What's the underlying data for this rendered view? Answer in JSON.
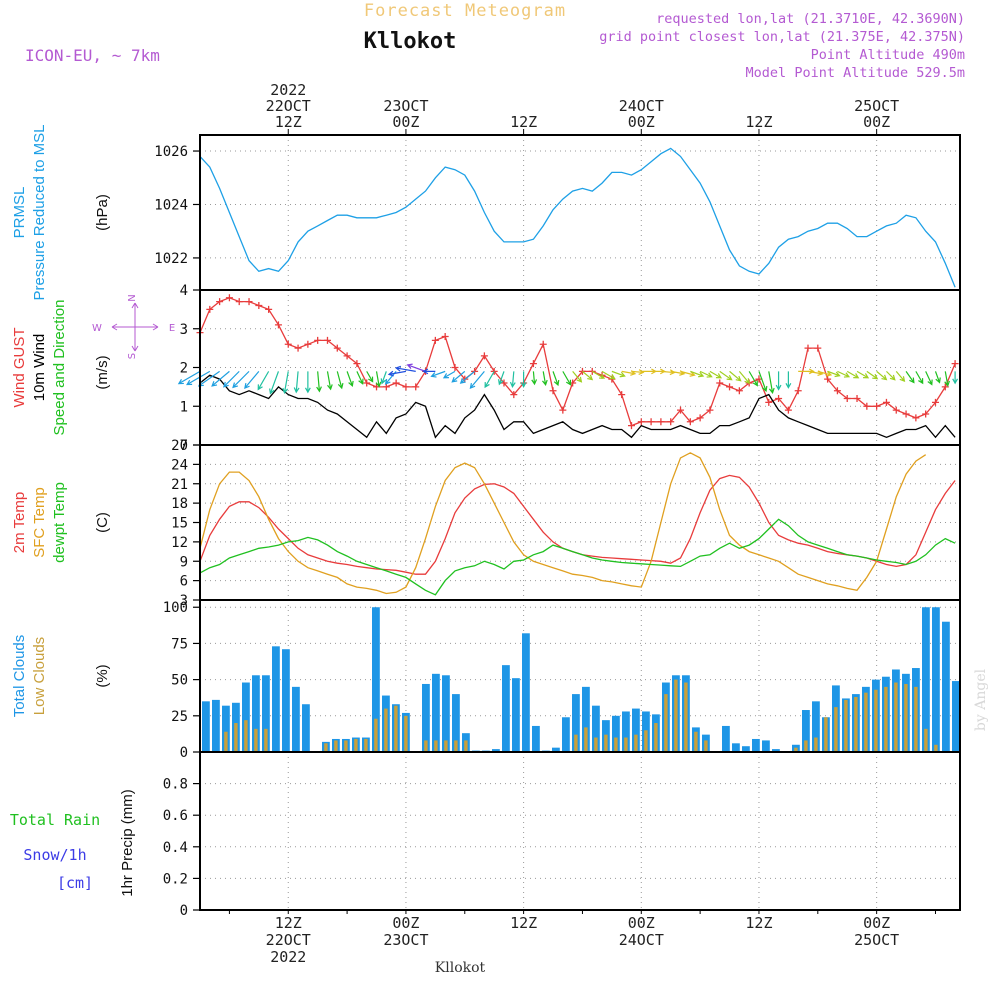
{
  "header": {
    "title": "Forecast Meteogram",
    "location": "Kllokot",
    "model": "ICON-EU, ~ 7km",
    "requested": "requested lon,lat (21.3710E, 42.3690N)",
    "gridpoint": "grid point closest lon,lat (21.375E, 42.375N)",
    "point_alt": "Point Altitude 490m",
    "model_alt": "Model Point Altitude 529.5m",
    "footer": "Kllokot",
    "watermark": "by Angel"
  },
  "colors": {
    "pressure": "#1ea0e6",
    "gust": "#e83c3c",
    "wind10m": "#000000",
    "t2m": "#e83c3c",
    "sfc": "#e0a020",
    "dewpt": "#20c020",
    "total_clouds": "#1e96e6",
    "low_clouds": "#c8a03c",
    "rain": "#20c020",
    "snow": "#3c3ce6",
    "header": "#b45ad2",
    "title": "#f0c878"
  },
  "time_axis": {
    "top": [
      {
        "h": 12,
        "lines": [
          "2022",
          "22OCT",
          "12Z"
        ]
      },
      {
        "h": 24,
        "lines": [
          "23OCT",
          "00Z"
        ]
      },
      {
        "h": 36,
        "lines": [
          "12Z"
        ]
      },
      {
        "h": 48,
        "lines": [
          "24OCT",
          "00Z"
        ]
      },
      {
        "h": 60,
        "lines": [
          "12Z"
        ]
      },
      {
        "h": 72,
        "lines": [
          "25OCT",
          "00Z"
        ]
      }
    ],
    "bottom": [
      {
        "h": 12,
        "lines": [
          "12Z",
          "22OCT",
          "2022"
        ]
      },
      {
        "h": 24,
        "lines": [
          "00Z",
          "23OCT"
        ]
      },
      {
        "h": 36,
        "lines": [
          "12Z"
        ]
      },
      {
        "h": 48,
        "lines": [
          "00Z",
          "24OCT"
        ]
      },
      {
        "h": 60,
        "lines": [
          "12Z"
        ]
      },
      {
        "h": 72,
        "lines": [
          "00Z",
          "25OCT"
        ]
      }
    ]
  },
  "chart_data": [
    {
      "type": "line",
      "label_lines": [
        {
          "text": "PRMSL",
          "color": "#1ea0e6"
        },
        {
          "text": "Pressure Reduced to MSL",
          "color": "#1ea0e6"
        }
      ],
      "unit": "(hPa)",
      "ylim": [
        1020.8,
        1026.6
      ],
      "yticks": [
        1022,
        1024,
        1026
      ],
      "series": [
        {
          "key": "pressure",
          "values": [
            1025.8,
            1025.4,
            1024.6,
            1023.7,
            1022.8,
            1021.9,
            1021.5,
            1021.6,
            1021.5,
            1021.9,
            1022.6,
            1023.0,
            1023.2,
            1023.4,
            1023.6,
            1023.6,
            1023.5,
            1023.5,
            1023.5,
            1023.6,
            1023.7,
            1023.9,
            1024.2,
            1024.5,
            1025.0,
            1025.4,
            1025.3,
            1025.1,
            1024.5,
            1023.7,
            1023.0,
            1022.6,
            1022.6,
            1022.6,
            1022.7,
            1023.2,
            1023.8,
            1024.2,
            1024.5,
            1024.6,
            1024.5,
            1024.8,
            1025.2,
            1025.2,
            1025.1,
            1025.3,
            1025.6,
            1025.9,
            1026.1,
            1025.8,
            1025.3,
            1024.8,
            1024.1,
            1023.2,
            1022.3,
            1021.7,
            1021.5,
            1021.4,
            1021.8,
            1022.4,
            1022.7,
            1022.8,
            1023.0,
            1023.1,
            1023.3,
            1023.3,
            1023.1,
            1022.8,
            1022.8,
            1023.0,
            1023.2,
            1023.3,
            1023.6,
            1023.5,
            1023.0,
            1022.6,
            1021.8,
            1020.9
          ]
        }
      ]
    },
    {
      "type": "line",
      "label_lines": [
        {
          "text": "Wind GUST",
          "color": "#e83c3c"
        },
        {
          "text": "10m Wind",
          "color": "#000000"
        },
        {
          "text": "Speed and Direction",
          "color": "#20c020"
        }
      ],
      "unit": "(m/s)",
      "ylim": [
        0,
        4
      ],
      "yticks": [
        0,
        1,
        2,
        3,
        4
      ],
      "compass": {
        "n": "N",
        "s": "S",
        "w": "W",
        "e": "E"
      },
      "series": [
        {
          "key": "gust",
          "values": [
            2.9,
            3.5,
            3.7,
            3.8,
            3.7,
            3.7,
            3.6,
            3.5,
            3.1,
            2.6,
            2.5,
            2.6,
            2.7,
            2.7,
            2.5,
            2.3,
            2.1,
            1.6,
            1.5,
            1.5,
            1.6,
            1.5,
            1.5,
            1.9,
            2.7,
            2.8,
            2.0,
            1.7,
            1.9,
            2.3,
            1.9,
            1.6,
            1.3,
            1.6,
            2.1,
            2.6,
            1.4,
            0.9,
            1.6,
            1.9,
            1.9,
            1.8,
            1.7,
            1.3,
            0.5,
            0.6,
            0.6,
            0.6,
            0.6,
            0.9,
            0.6,
            0.7,
            0.9,
            1.6,
            1.5,
            1.4,
            1.6,
            1.7,
            1.1,
            1.2,
            0.9,
            1.4,
            2.5,
            2.5,
            1.7,
            1.4,
            1.2,
            1.2,
            1.0,
            1.0,
            1.1,
            0.9,
            0.8,
            0.7,
            0.8,
            1.1,
            1.5,
            2.1
          ]
        },
        {
          "key": "wind10m",
          "values": [
            1.6,
            1.8,
            1.7,
            1.4,
            1.3,
            1.4,
            1.3,
            1.2,
            1.5,
            1.3,
            1.2,
            1.2,
            1.1,
            0.9,
            0.8,
            0.6,
            0.4,
            0.2,
            0.6,
            0.3,
            0.7,
            0.8,
            1.1,
            1.0,
            0.2,
            0.5,
            0.3,
            0.7,
            0.9,
            1.3,
            0.9,
            0.4,
            0.6,
            0.6,
            0.3,
            0.4,
            0.5,
            0.6,
            0.4,
            0.3,
            0.4,
            0.5,
            0.4,
            0.4,
            0.2,
            0.5,
            0.4,
            0.4,
            0.4,
            0.5,
            0.4,
            0.3,
            0.3,
            0.5,
            0.5,
            0.6,
            0.7,
            1.2,
            1.3,
            0.9,
            0.7,
            0.6,
            0.5,
            0.4,
            0.3,
            0.3,
            0.3,
            0.3,
            0.3,
            0.3,
            0.2,
            0.3,
            0.4,
            0.4,
            0.5,
            0.2,
            0.5,
            0.2
          ]
        }
      ],
      "wind_arrows": {
        "direction_deg": [
          240,
          240,
          235,
          230,
          225,
          225,
          220,
          210,
          200,
          190,
          185,
          180,
          175,
          170,
          165,
          160,
          155,
          150,
          170,
          200,
          220,
          260,
          280,
          290,
          270,
          250,
          240,
          230,
          230,
          220,
          210,
          200,
          185,
          180,
          175,
          170,
          160,
          150,
          140,
          130,
          120,
          120,
          110,
          100,
          95,
          90,
          90,
          95,
          100,
          105,
          110,
          115,
          120,
          125,
          130,
          140,
          150,
          160,
          170,
          180,
          180,
          90,
          100,
          105,
          110,
          115,
          120,
          120,
          125,
          130,
          135,
          140,
          145,
          150,
          155,
          160,
          170,
          180
        ],
        "level": 1.9
      }
    },
    {
      "type": "line",
      "label_lines": [
        {
          "text": "2m Temp",
          "color": "#e83c3c"
        },
        {
          "text": "SFC Temp",
          "color": "#e0a020"
        },
        {
          "text": "dewpt Temp",
          "color": "#20c020"
        }
      ],
      "unit": "(C)",
      "ylim": [
        3,
        27
      ],
      "yticks": [
        3,
        6,
        9,
        12,
        15,
        18,
        21,
        24,
        27
      ],
      "series": [
        {
          "key": "t2m",
          "values": [
            9.0,
            13.0,
            15.5,
            17.5,
            18.2,
            18.2,
            17.3,
            15.8,
            14.0,
            12.5,
            11.0,
            10.0,
            9.5,
            9.0,
            8.7,
            8.5,
            8.2,
            8.0,
            7.8,
            7.7,
            7.6,
            7.3,
            7.0,
            7.0,
            9.0,
            12.5,
            16.5,
            18.8,
            20.2,
            20.9,
            21.0,
            20.5,
            19.5,
            17.5,
            15.5,
            13.5,
            12.0,
            11.0,
            10.5,
            10.0,
            9.8,
            9.6,
            9.5,
            9.4,
            9.3,
            9.2,
            9.1,
            9.0,
            8.7,
            9.5,
            12.5,
            16.5,
            20.0,
            21.8,
            22.3,
            22.0,
            20.5,
            18.0,
            15.0,
            13.0,
            12.3,
            11.8,
            11.5,
            11.0,
            10.5,
            10.2,
            10.0,
            9.8,
            9.5,
            9.0,
            8.5,
            8.2,
            8.5,
            10.0,
            13.5,
            17.0,
            19.5,
            21.5
          ]
        },
        {
          "key": "sfc",
          "values": [
            11.0,
            17.0,
            21.0,
            22.8,
            22.8,
            21.5,
            19.0,
            15.5,
            12.5,
            10.5,
            9.0,
            8.0,
            7.5,
            7.0,
            6.5,
            5.5,
            5.0,
            4.8,
            4.5,
            4.0,
            4.2,
            5.0,
            8.0,
            12.5,
            17.5,
            21.5,
            23.5,
            24.2,
            23.5,
            21.0,
            18.0,
            15.0,
            12.0,
            10.0,
            9.0,
            8.5,
            8.0,
            7.5,
            7.0,
            6.8,
            6.5,
            6.0,
            5.8,
            5.5,
            5.2,
            5.0,
            9.0,
            15.0,
            21.0,
            25.0,
            25.8,
            25.0,
            22.0,
            17.0,
            13.0,
            11.5,
            10.5,
            10.0,
            9.5,
            9.0,
            8.0,
            7.0,
            6.5,
            6.0,
            5.5,
            5.2,
            4.8,
            4.5,
            6.5,
            9.0,
            14.0,
            19.0,
            22.5,
            24.5,
            25.5
          ]
        },
        {
          "key": "dewpt",
          "values": [
            7.2,
            8.0,
            8.5,
            9.5,
            10.0,
            10.5,
            11.0,
            11.2,
            11.5,
            12.0,
            12.2,
            12.7,
            12.3,
            11.5,
            10.5,
            9.8,
            9.0,
            8.5,
            8.0,
            7.5,
            7.0,
            6.5,
            5.5,
            4.5,
            3.8,
            6.0,
            7.5,
            8.0,
            8.3,
            9.0,
            8.5,
            7.8,
            9.0,
            9.2,
            10.0,
            10.5,
            11.5,
            11.0,
            10.5,
            10.0,
            9.5,
            9.2,
            9.0,
            8.8,
            8.7,
            8.6,
            8.5,
            8.4,
            8.3,
            8.2,
            9.0,
            9.8,
            10.0,
            11.0,
            11.8,
            11.0,
            11.5,
            12.5,
            14.0,
            15.5,
            14.5,
            13.0,
            12.0,
            11.5,
            11.0,
            10.5,
            10.0,
            9.8,
            9.5,
            9.2,
            9.0,
            8.8,
            8.5,
            9.0,
            10.0,
            11.5,
            12.5,
            11.8
          ]
        }
      ]
    },
    {
      "type": "bar",
      "label_lines": [
        {
          "text": "Total Clouds",
          "color": "#1e96e6"
        },
        {
          "text": "Low Clouds",
          "color": "#c8a03c"
        }
      ],
      "unit": "(%)",
      "ylim": [
        0,
        105
      ],
      "yticks": [
        0,
        25,
        50,
        75,
        100
      ],
      "series": [
        {
          "key": "total_clouds",
          "values": [
            35,
            36,
            32,
            34,
            48,
            53,
            53,
            73,
            71,
            45,
            33,
            0,
            7,
            9,
            9,
            10,
            10,
            100,
            39,
            33,
            27,
            0,
            47,
            54,
            53,
            40,
            13,
            1,
            1,
            2,
            60,
            51,
            82,
            18,
            1,
            3,
            24,
            40,
            45,
            32,
            22,
            25,
            28,
            30,
            28,
            26,
            48,
            53,
            53,
            17,
            12,
            0,
            18,
            6,
            4,
            9,
            8,
            2,
            0,
            5,
            29,
            35,
            24,
            46,
            37,
            40,
            45,
            50,
            52,
            57,
            54,
            58,
            100,
            100,
            90,
            49
          ]
        },
        {
          "key": "low_clouds",
          "values": [
            0,
            0,
            14,
            20,
            22,
            16,
            16,
            0,
            0,
            0,
            0,
            0,
            6,
            8,
            8,
            9,
            9,
            23,
            30,
            32,
            25,
            0,
            8,
            8,
            8,
            8,
            8,
            0,
            0,
            0,
            0,
            0,
            0,
            0,
            0,
            0,
            0,
            12,
            17,
            10,
            12,
            10,
            10,
            12,
            15,
            20,
            40,
            50,
            48,
            14,
            8,
            0,
            0,
            0,
            0,
            0,
            0,
            0,
            0,
            3,
            8,
            10,
            24,
            31,
            36,
            38,
            41,
            43,
            45,
            48,
            47,
            45,
            16,
            5,
            0,
            0
          ]
        }
      ]
    },
    {
      "type": "bar",
      "label_lines": [
        {
          "text": "Total  Rain",
          "color": "#20c020"
        },
        {
          "text": "Snow/1h",
          "color": "#3c3ce6"
        },
        {
          "text": "[cm]",
          "color": "#3c3ce6"
        }
      ],
      "unit": "1hr Precip (mm)",
      "ylim": [
        0,
        1.0
      ],
      "yticks": [
        0,
        0.2,
        0.4,
        0.6,
        0.8
      ],
      "series": [
        {
          "key": "rain",
          "values": []
        },
        {
          "key": "snow",
          "values": []
        }
      ]
    }
  ]
}
